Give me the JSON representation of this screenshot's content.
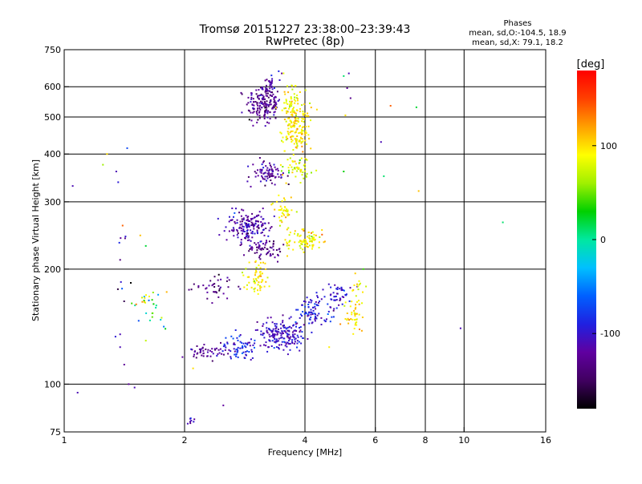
{
  "chart_data": {
    "type": "scatter",
    "title": "Tromsø 20151227 23:38:00–23:39:43",
    "subtitle": "RwPretec (8p)",
    "xlabel": "Frequency [MHz]",
    "ylabel": "Stationary phase Virtual Height [km]",
    "x_scale": "log",
    "y_scale": "log",
    "xlim": [
      1,
      16
    ],
    "ylim": [
      75,
      750
    ],
    "x_ticks": [
      1,
      2,
      4,
      6,
      8,
      10,
      16
    ],
    "x_tick_labels": [
      "1",
      "2",
      "4",
      "6",
      "8",
      "10",
      "16"
    ],
    "y_ticks": [
      75,
      100,
      200,
      300,
      400,
      500,
      600,
      750
    ],
    "y_tick_labels": [
      "75",
      "100",
      "200",
      "300",
      "400",
      "500",
      "600",
      "750"
    ],
    "grid": true,
    "phase_info": {
      "heading": "Phases",
      "line_o": "mean, sd,O:-104.5, 18.9",
      "line_x": "mean, sd,X: 79.1, 18.2"
    },
    "colorbar": {
      "label": "[deg]",
      "range": [
        -180,
        180
      ],
      "ticks": [
        -100,
        0,
        100
      ],
      "tick_labels": [
        "-100",
        "0",
        "100"
      ],
      "colors": [
        "#000000",
        "#400060",
        "#6000a0",
        "#2020e0",
        "#0060ff",
        "#00c0ff",
        "#00e8a0",
        "#00d000",
        "#a0f000",
        "#ffff00",
        "#ffa000",
        "#ff4000",
        "#ff0000"
      ]
    },
    "clusters": [
      {
        "cx": 3.15,
        "cy": 540,
        "sx": 0.05,
        "sy": 0.06,
        "n": 170,
        "phase": -125,
        "psd": 15
      },
      {
        "cx": 3.3,
        "cy": 600,
        "sx": 0.03,
        "sy": 0.04,
        "n": 30,
        "phase": -115,
        "psd": 15
      },
      {
        "cx": 3.8,
        "cy": 470,
        "sx": 0.04,
        "sy": 0.08,
        "n": 170,
        "phase": 95,
        "psd": 14
      },
      {
        "cx": 3.7,
        "cy": 560,
        "sx": 0.03,
        "sy": 0.05,
        "n": 40,
        "phase": 85,
        "psd": 15
      },
      {
        "cx": 3.8,
        "cy": 365,
        "sx": 0.04,
        "sy": 0.04,
        "n": 50,
        "phase": 80,
        "psd": 15
      },
      {
        "cx": 3.25,
        "cy": 355,
        "sx": 0.05,
        "sy": 0.04,
        "n": 80,
        "phase": -125,
        "psd": 15
      },
      {
        "cx": 2.9,
        "cy": 258,
        "sx": 0.07,
        "sy": 0.05,
        "n": 170,
        "phase": -115,
        "psd": 15
      },
      {
        "cx": 3.2,
        "cy": 225,
        "sx": 0.06,
        "sy": 0.03,
        "n": 60,
        "phase": -130,
        "psd": 12
      },
      {
        "cx": 4.0,
        "cy": 238,
        "sx": 0.05,
        "sy": 0.04,
        "n": 90,
        "phase": 95,
        "psd": 14
      },
      {
        "cx": 3.55,
        "cy": 285,
        "sx": 0.03,
        "sy": 0.04,
        "n": 40,
        "phase": 90,
        "psd": 15
      },
      {
        "cx": 3.05,
        "cy": 190,
        "sx": 0.04,
        "sy": 0.05,
        "n": 60,
        "phase": 90,
        "psd": 15
      },
      {
        "cx": 2.35,
        "cy": 178,
        "sx": 0.06,
        "sy": 0.04,
        "n": 40,
        "phase": -130,
        "psd": 15
      },
      {
        "cx": 2.25,
        "cy": 122,
        "sx": 0.06,
        "sy": 0.02,
        "n": 50,
        "phase": -125,
        "psd": 12
      },
      {
        "cx": 2.75,
        "cy": 125,
        "sx": 0.05,
        "sy": 0.04,
        "n": 70,
        "phase": -90,
        "psd": 15
      },
      {
        "cx": 3.5,
        "cy": 135,
        "sx": 0.07,
        "sy": 0.04,
        "n": 180,
        "phase": -105,
        "psd": 14
      },
      {
        "cx": 4.2,
        "cy": 155,
        "sx": 0.06,
        "sy": 0.05,
        "n": 80,
        "phase": -95,
        "psd": 15
      },
      {
        "cx": 4.8,
        "cy": 170,
        "sx": 0.05,
        "sy": 0.04,
        "n": 50,
        "phase": -100,
        "psd": 15
      },
      {
        "cx": 5.3,
        "cy": 152,
        "sx": 0.03,
        "sy": 0.05,
        "n": 40,
        "phase": 100,
        "psd": 14
      },
      {
        "cx": 5.45,
        "cy": 180,
        "sx": 0.02,
        "sy": 0.05,
        "n": 15,
        "phase": 90,
        "psd": 15
      },
      {
        "cx": 2.05,
        "cy": 80,
        "sx": 0.02,
        "sy": 0.01,
        "n": 8,
        "phase": -110,
        "psd": 10
      },
      {
        "cx": 1.65,
        "cy": 160,
        "sx": 0.06,
        "sy": 0.08,
        "n": 30,
        "phase": 40,
        "psd": 60
      },
      {
        "cx": 1.4,
        "cy": 200,
        "sx": 0.02,
        "sy": 0.25,
        "n": 14,
        "phase": -110,
        "psd": 30
      }
    ],
    "outliers": [
      {
        "x": 1.08,
        "y": 95,
        "phase": -110
      },
      {
        "x": 1.25,
        "y": 375,
        "phase": 60
      },
      {
        "x": 1.28,
        "y": 400,
        "phase": 100
      },
      {
        "x": 1.35,
        "y": 360,
        "phase": -110
      },
      {
        "x": 1.45,
        "y": 100,
        "phase": -120
      },
      {
        "x": 1.5,
        "y": 98,
        "phase": -110
      },
      {
        "x": 1.05,
        "y": 330,
        "phase": -110
      },
      {
        "x": 2.5,
        "y": 88,
        "phase": -120
      },
      {
        "x": 3.85,
        "y": 75,
        "phase": 140
      },
      {
        "x": 5.0,
        "y": 640,
        "phase": 10
      },
      {
        "x": 5.15,
        "y": 650,
        "phase": -110
      },
      {
        "x": 5.1,
        "y": 595,
        "phase": -125
      },
      {
        "x": 5.2,
        "y": 560,
        "phase": -130
      },
      {
        "x": 5.05,
        "y": 505,
        "phase": 100
      },
      {
        "x": 6.2,
        "y": 430,
        "phase": -110
      },
      {
        "x": 6.3,
        "y": 350,
        "phase": 10
      },
      {
        "x": 6.55,
        "y": 535,
        "phase": 140
      },
      {
        "x": 7.6,
        "y": 530,
        "phase": 20
      },
      {
        "x": 7.7,
        "y": 320,
        "phase": 110
      },
      {
        "x": 5.0,
        "y": 360,
        "phase": 30
      },
      {
        "x": 9.8,
        "y": 140,
        "phase": -110
      },
      {
        "x": 12.5,
        "y": 265,
        "phase": 10
      },
      {
        "x": 5.6,
        "y": 200,
        "phase": 40
      },
      {
        "x": 4.6,
        "y": 125,
        "phase": 95
      },
      {
        "x": 1.38,
        "y": 135,
        "phase": -110
      },
      {
        "x": 1.38,
        "y": 125,
        "phase": -110
      },
      {
        "x": 1.6,
        "y": 130,
        "phase": 70
      },
      {
        "x": 1.55,
        "y": 245,
        "phase": 110
      },
      {
        "x": 1.6,
        "y": 230,
        "phase": 20
      },
      {
        "x": 1.4,
        "y": 260,
        "phase": 140
      },
      {
        "x": 3.5,
        "y": 650,
        "phase": -120
      },
      {
        "x": 2.1,
        "y": 110,
        "phase": 100
      }
    ]
  }
}
